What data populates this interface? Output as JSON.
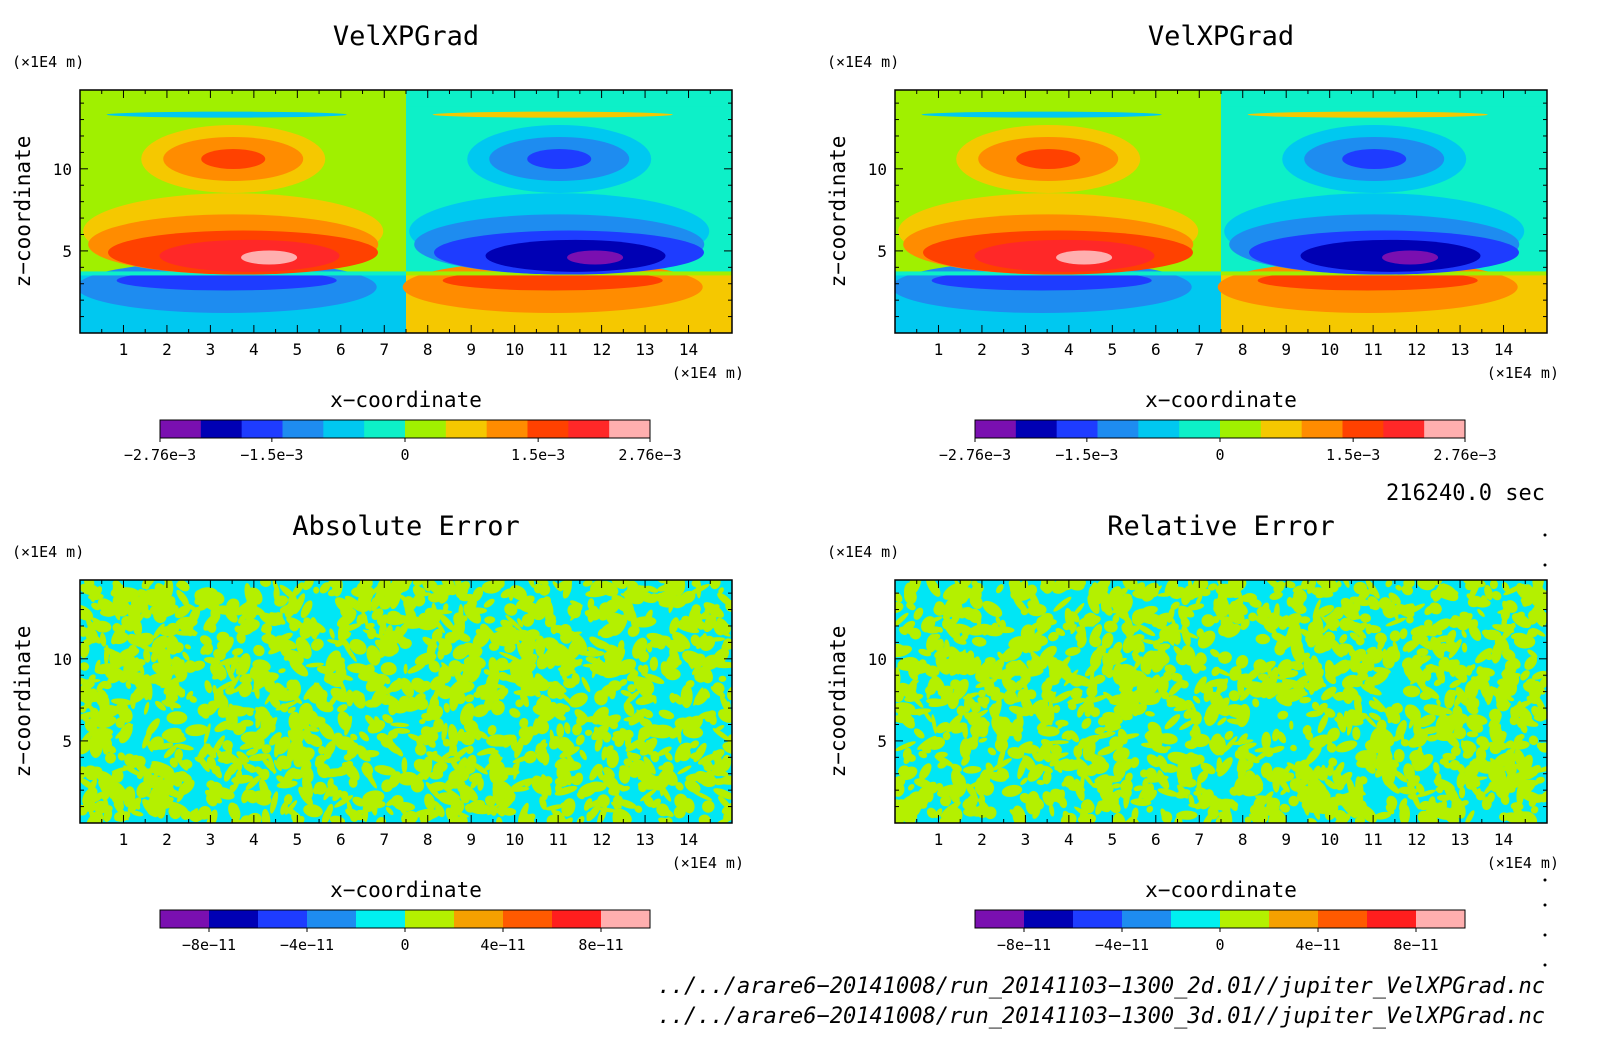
{
  "chart_data": [
    {
      "type": "heatmap",
      "title": "VelXPGrad",
      "xlabel": "x−coordinate",
      "ylabel": "z−coordinate",
      "xunit": "(×1E4 m)",
      "yunit": "(×1E4 m)",
      "xlim": [
        0,
        15
      ],
      "ylim": [
        0,
        14.8
      ],
      "xticks": [
        1,
        2,
        3,
        4,
        5,
        6,
        7,
        8,
        9,
        10,
        11,
        12,
        13,
        14
      ],
      "yticks": [
        5,
        10
      ],
      "field": "antisymmetric_gradient",
      "colorbar": {
        "min": -0.00276,
        "max": 0.00276,
        "colors": [
          "#7a0fb0",
          "#0000b4",
          "#1e3cff",
          "#1e8cf0",
          "#00c8f0",
          "#0df0c8",
          "#a0f000",
          "#f5c800",
          "#ff8c00",
          "#ff4100",
          "#ff2828",
          "#ffafaf"
        ],
        "tick_labels": [
          "−2.76e−3",
          "−1.5e−3",
          "0",
          "1.5e−3",
          "2.76e−3"
        ],
        "tick_values": [
          -0.00276,
          -0.0015,
          0,
          0.0015,
          0.00276
        ]
      }
    },
    {
      "type": "heatmap",
      "title": "VelXPGrad",
      "xlabel": "x−coordinate",
      "ylabel": "z−coordinate",
      "xunit": "(×1E4 m)",
      "yunit": "(×1E4 m)",
      "xlim": [
        0,
        15
      ],
      "ylim": [
        0,
        14.8
      ],
      "xticks": [
        1,
        2,
        3,
        4,
        5,
        6,
        7,
        8,
        9,
        10,
        11,
        12,
        13,
        14
      ],
      "yticks": [
        5,
        10
      ],
      "field": "antisymmetric_gradient",
      "colorbar": {
        "min": -0.00276,
        "max": 0.00276,
        "colors": [
          "#7a0fb0",
          "#0000b4",
          "#1e3cff",
          "#1e8cf0",
          "#00c8f0",
          "#0df0c8",
          "#a0f000",
          "#f5c800",
          "#ff8c00",
          "#ff4100",
          "#ff2828",
          "#ffafaf"
        ],
        "tick_labels": [
          "−2.76e−3",
          "−1.5e−3",
          "0",
          "1.5e−3",
          "2.76e−3"
        ],
        "tick_values": [
          -0.00276,
          -0.0015,
          0,
          0.0015,
          0.00276
        ]
      }
    },
    {
      "type": "heatmap",
      "title": "Absolute Error",
      "xlabel": "x−coordinate",
      "ylabel": "z−coordinate",
      "xunit": "(×1E4 m)",
      "yunit": "(×1E4 m)",
      "xlim": [
        0,
        15
      ],
      "ylim": [
        0,
        14.8
      ],
      "xticks": [
        1,
        2,
        3,
        4,
        5,
        6,
        7,
        8,
        9,
        10,
        11,
        12,
        13,
        14
      ],
      "yticks": [
        5,
        10
      ],
      "field": "noise",
      "noise_colors": [
        "#00e6f5",
        "#b4f000"
      ],
      "colorbar": {
        "min": -1e-10,
        "max": 1e-10,
        "colors": [
          "#7a0fb0",
          "#0000b4",
          "#1e3cff",
          "#1e8cf0",
          "#00f0f0",
          "#b4f000",
          "#f5a000",
          "#ff5a00",
          "#ff1e1e",
          "#ffafaf"
        ],
        "tick_labels": [
          "−8e−11",
          "−4e−11",
          "0",
          "4e−11",
          "8e−11"
        ],
        "tick_values": [
          -8e-11,
          -4e-11,
          0,
          4e-11,
          8e-11
        ]
      }
    },
    {
      "type": "heatmap",
      "title": "Relative Error",
      "xlabel": "x−coordinate",
      "ylabel": "z−coordinate",
      "xunit": "(×1E4 m)",
      "yunit": "(×1E4 m)",
      "xlim": [
        0,
        15
      ],
      "ylim": [
        0,
        14.8
      ],
      "xticks": [
        1,
        2,
        3,
        4,
        5,
        6,
        7,
        8,
        9,
        10,
        11,
        12,
        13,
        14
      ],
      "yticks": [
        5,
        10
      ],
      "field": "noise",
      "noise_colors": [
        "#00e6f5",
        "#b4f000"
      ],
      "colorbar": {
        "min": -1e-10,
        "max": 1e-10,
        "colors": [
          "#7a0fb0",
          "#0000b4",
          "#1e3cff",
          "#1e8cf0",
          "#00f0f0",
          "#b4f000",
          "#f5a000",
          "#ff5a00",
          "#ff1e1e",
          "#ffafaf"
        ],
        "tick_labels": [
          "−8e−11",
          "−4e−11",
          "0",
          "4e−11",
          "8e−11"
        ],
        "tick_values": [
          -8e-11,
          -4e-11,
          0,
          4e-11,
          8e-11
        ]
      }
    }
  ],
  "time_label": "216240.0 sec",
  "files": [
    "../../arare6−20141008/run_20141103−1300_2d.01//jupiter_VelXPGrad.nc",
    "../../arare6−20141008/run_20141103−1300_3d.01//jupiter_VelXPGrad.nc"
  ]
}
